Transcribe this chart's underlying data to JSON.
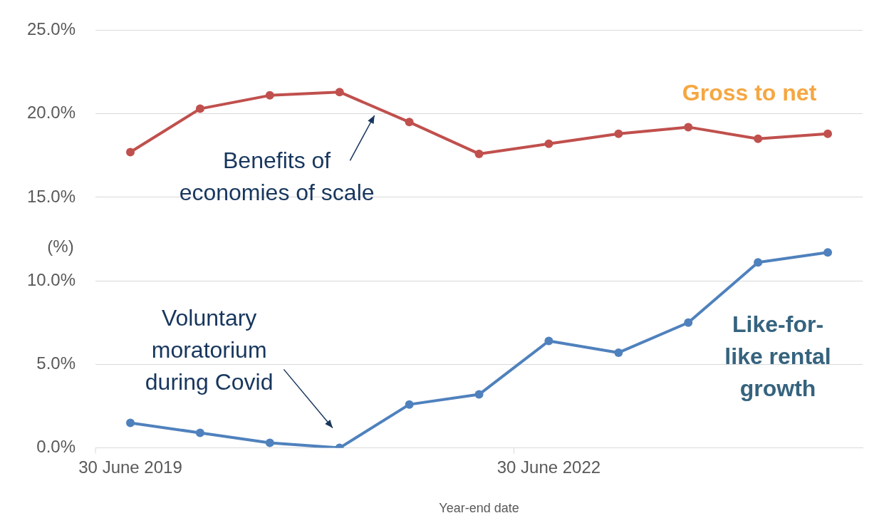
{
  "chart_data": {
    "type": "line",
    "xlabel": "Year-end date",
    "ylabel": "(%)",
    "categories": [
      "30 June 2019",
      null,
      null,
      null,
      null,
      null,
      "30 June 2022",
      null,
      null,
      null,
      null
    ],
    "series": [
      {
        "name": "Gross to net",
        "color": "#c0504d",
        "values": [
          17.7,
          20.3,
          21.1,
          21.3,
          19.5,
          17.6,
          18.2,
          18.8,
          19.2,
          18.5,
          18.8
        ]
      },
      {
        "name": "Like-for-like rental growth",
        "color": "#4f81bd",
        "values": [
          1.5,
          0.9,
          0.3,
          0.0,
          2.6,
          3.2,
          6.4,
          5.7,
          7.5,
          11.1,
          11.7
        ]
      }
    ],
    "annotations": [
      "Benefits of economies of scale",
      "Voluntary moratorium during Covid"
    ],
    "ylim": [
      0,
      25
    ],
    "yticks": [
      {
        "value": 0,
        "label": "0.0%"
      },
      {
        "value": 5,
        "label": "5.0%"
      },
      {
        "value": 10,
        "label": "10.0%"
      },
      {
        "value": 15,
        "label": "15.0%"
      },
      {
        "value": 20,
        "label": "20.0%"
      },
      {
        "value": 25,
        "label": "25.0%"
      }
    ],
    "grid": "y",
    "marker": "circle",
    "line_style": "solid",
    "legend": false
  }
}
